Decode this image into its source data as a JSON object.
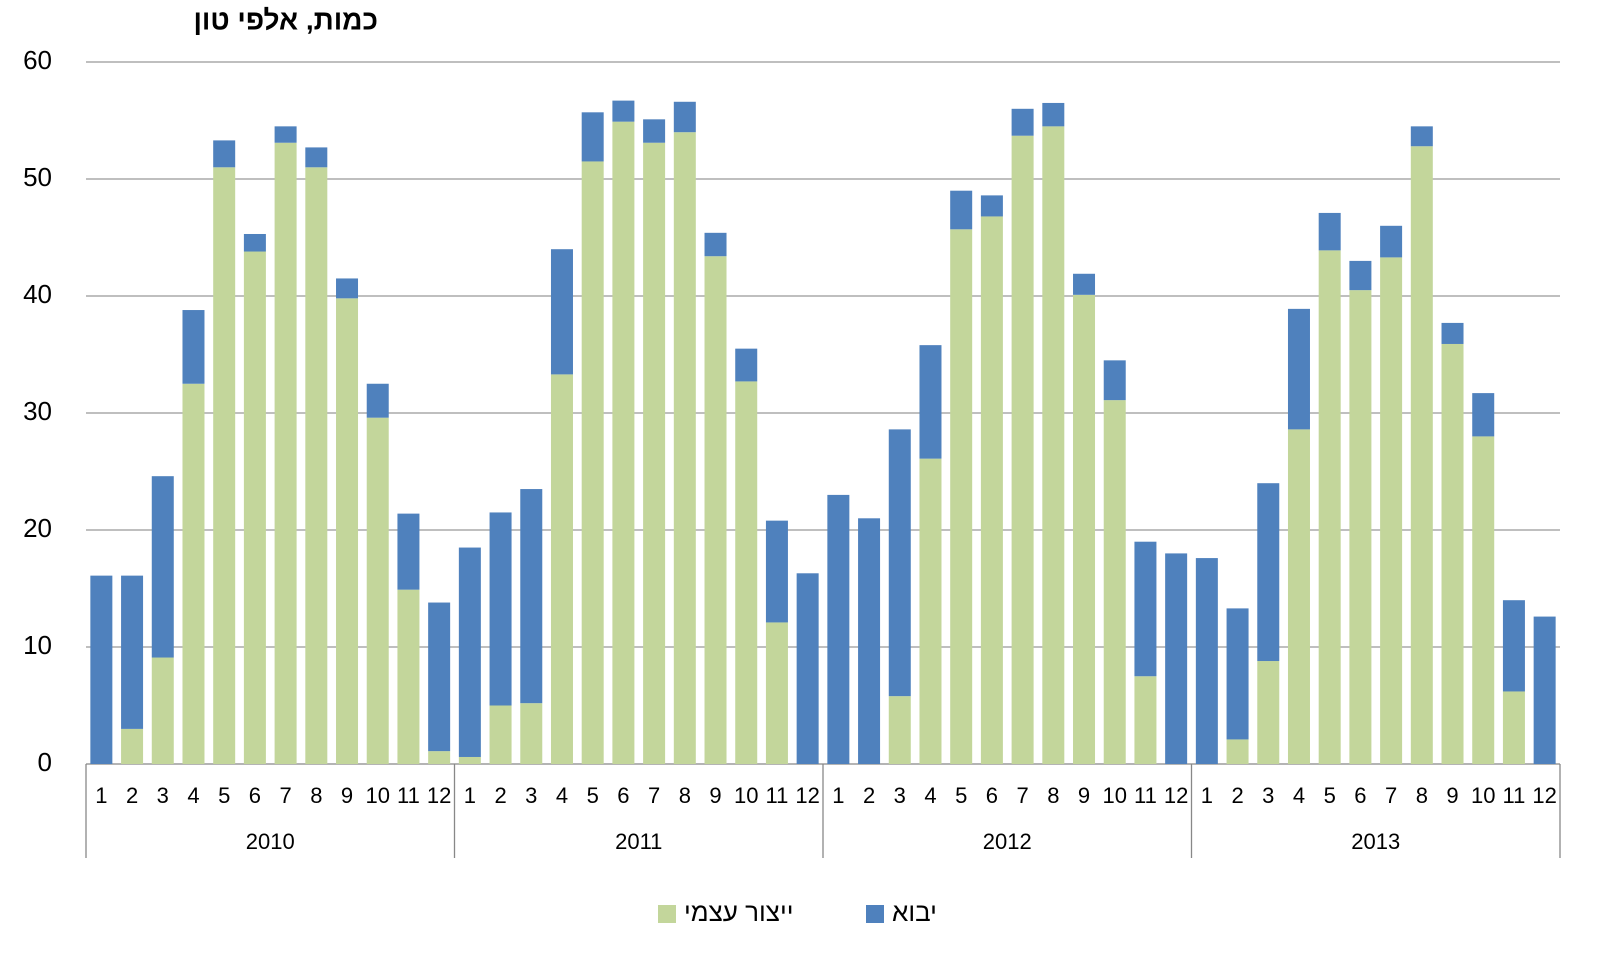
{
  "chart_data": {
    "type": "stacked_bar",
    "title": "כמות, אלפי טון",
    "categories": [
      "1",
      "2",
      "3",
      "4",
      "5",
      "6",
      "7",
      "8",
      "9",
      "10",
      "11",
      "12",
      "1",
      "2",
      "3",
      "4",
      "5",
      "6",
      "7",
      "8",
      "9",
      "10",
      "11",
      "12",
      "1",
      "2",
      "3",
      "4",
      "5",
      "6",
      "7",
      "8",
      "9",
      "10",
      "11",
      "12",
      "1",
      "2",
      "3",
      "4",
      "5",
      "6",
      "7",
      "8",
      "9",
      "10",
      "11",
      "12"
    ],
    "groups": [
      "2010",
      "2011",
      "2012",
      "2013"
    ],
    "series": [
      {
        "name": "ייצור עצמי",
        "color": "#c3d69b",
        "values": [
          0,
          3.0,
          9.1,
          32.5,
          51.0,
          43.8,
          53.1,
          51.0,
          39.8,
          29.6,
          14.9,
          1.1,
          0.6,
          5.0,
          5.2,
          33.3,
          51.5,
          54.9,
          53.1,
          54.0,
          43.4,
          32.7,
          12.1,
          0,
          0,
          0,
          5.8,
          26.1,
          45.7,
          46.8,
          53.7,
          54.5,
          40.1,
          31.1,
          7.5,
          0,
          0,
          2.1,
          8.8,
          28.6,
          43.9,
          40.5,
          43.3,
          52.8,
          35.9,
          28.0,
          6.2,
          0
        ]
      },
      {
        "name": "יבוא",
        "color": "#4f81bd",
        "values": [
          16.1,
          13.1,
          15.5,
          6.3,
          2.3,
          1.5,
          1.4,
          1.7,
          1.7,
          2.9,
          6.5,
          12.7,
          17.9,
          16.5,
          18.3,
          10.7,
          4.2,
          1.8,
          2.0,
          2.6,
          2.0,
          2.8,
          8.7,
          16.3,
          23.0,
          21.0,
          22.8,
          9.7,
          3.3,
          1.8,
          2.3,
          2.0,
          1.8,
          3.4,
          11.5,
          18.0,
          17.6,
          11.2,
          15.2,
          10.3,
          3.2,
          2.5,
          2.7,
          1.7,
          1.8,
          3.7,
          7.8,
          12.6
        ]
      }
    ],
    "ylim": [
      0,
      60
    ],
    "yticks": [
      0,
      10,
      20,
      30,
      40,
      50,
      60
    ],
    "grid": true,
    "legend": "bottom"
  }
}
